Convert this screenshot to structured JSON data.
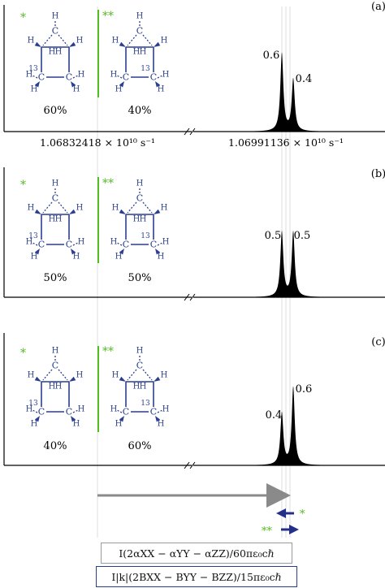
{
  "axis_labels": {
    "left_freq": "1.06832418 × 10¹⁰ s⁻¹",
    "right_freq": "1.06991136 × 10¹⁰ s⁻¹"
  },
  "panels": [
    {
      "id": "a",
      "tag": "(a)",
      "pct_left": "60%",
      "pct_right": "40%",
      "peak_left_label": "0.6",
      "peak_right_label": "0.4",
      "peak_left": 0.6,
      "peak_right": 0.4
    },
    {
      "id": "b",
      "tag": "(b)",
      "pct_left": "50%",
      "pct_right": "50%",
      "peak_left_label": "0.5",
      "peak_right_label": "0.5",
      "peak_left": 0.5,
      "peak_right": 0.5
    },
    {
      "id": "c",
      "tag": "(c)",
      "pct_left": "40%",
      "pct_right": "60%",
      "peak_left_label": "0.4",
      "peak_right_label": "0.6",
      "peak_left": 0.4,
      "peak_right": 0.6
    }
  ],
  "markers": {
    "star1": "*",
    "star2": "**"
  },
  "atoms": {
    "C": "C",
    "H": "H",
    "iso": "13"
  },
  "formulas": {
    "alpha": "I(2αXX − αYY − αZZ)/60πε₀cℏ",
    "beta": "I|k|(2BXX − BYY − BZZ)/15πε₀cℏ"
  },
  "colors": {
    "molecule": "#2a3f8f",
    "green": "#55bb22",
    "arrow_gray": "#8a8a8a",
    "arrow_blue": "#23308a"
  }
}
